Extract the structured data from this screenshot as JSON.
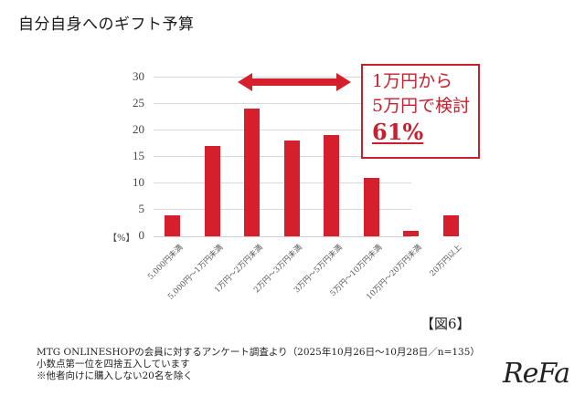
{
  "title": "自分自身へのギフト予算",
  "chart_data": {
    "type": "bar",
    "title": "自分自身へのギフト予算",
    "categories": [
      "5,000円未満",
      "5,000円〜1万円未満",
      "1万円〜2万円未満",
      "2万円〜3万円未満",
      "3万円〜5万円未満",
      "5万円〜10万円未満",
      "10万円〜20万円未満",
      "20万円以上"
    ],
    "values": [
      4,
      17,
      24,
      18,
      19,
      11,
      1,
      4
    ],
    "xlabel": "",
    "ylabel": "[%]",
    "ylim": [
      0,
      30
    ],
    "yticks": [
      0,
      5,
      10,
      15,
      20,
      25,
      30
    ],
    "grid": true,
    "bar_color": "#d51f2c",
    "annotations": [
      {
        "type": "double-arrow",
        "span": [
          "1万円〜2万円未満",
          "3万円〜5万円未満"
        ]
      },
      {
        "type": "callout",
        "text": [
          "1万円から",
          "5万円で検討",
          "61%"
        ]
      }
    ]
  },
  "axis": {
    "unit": "【%】",
    "yticks": [
      "30",
      "25",
      "20",
      "15",
      "10",
      "5",
      "0"
    ]
  },
  "callout": {
    "line1": "1万円から",
    "line2": "5万円で検討",
    "line3": "61%"
  },
  "figure_label": "【図6】",
  "notes": {
    "line1": "MTG ONLINESHOPの会員に対するアンケート調査より（2025年10月26日〜10月28日／n=135）",
    "line2": "小数点第一位を四捨五入しています",
    "line3": "※他者向けに購入しない20名を除く"
  },
  "brand": "ReFa"
}
